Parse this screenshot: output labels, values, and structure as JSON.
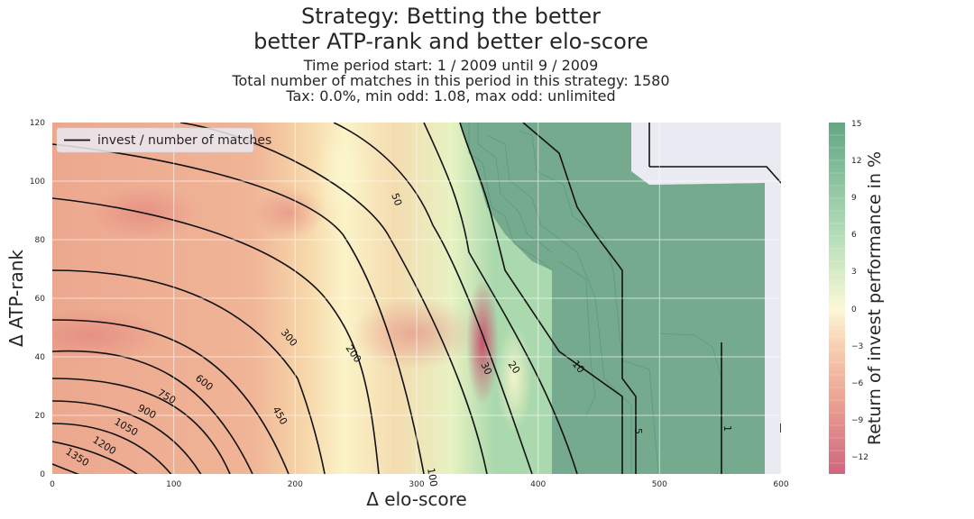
{
  "chart_data": {
    "type": "heatmap",
    "title": "Strategy: Betting the better",
    "subtitle": "better ATP-rank and better elo-score",
    "info_lines": [
      "Time period start: 1 / 2009 until 9 / 2009",
      "Total number of matches in this period in this strategy: 1580",
      "Tax: 0.0%, min odd: 1.08, max odd: unlimited"
    ],
    "xlabel": "Δ elo-score",
    "ylabel": "Δ ATP-rank",
    "xlim": [
      0,
      600
    ],
    "ylim": [
      0,
      120
    ],
    "xticks": [
      "0",
      "100",
      "200",
      "300",
      "400",
      "500",
      "600"
    ],
    "yticks": [
      "0",
      "20",
      "40",
      "60",
      "80",
      "100",
      "120"
    ],
    "colorbar": {
      "label": "Return of invest performance in %",
      "range": [
        -13.5,
        15
      ],
      "ticks": [
        "15",
        "12",
        "9",
        "6",
        "3",
        "0",
        "−3",
        "−6",
        "−9",
        "−12"
      ],
      "colors": [
        "#c2405e",
        "#e88f7a",
        "#f7c59f",
        "#fbf6cc",
        "#9fd5a6",
        "#3d9065"
      ]
    },
    "legend": {
      "label": "invest / number of matches",
      "position": "top-left"
    },
    "grid": true,
    "contour_labels": [
      "1350",
      "1200",
      "1050",
      "900",
      "750",
      "600",
      "450",
      "300",
      "200",
      "100",
      "50",
      "30",
      "20",
      "10",
      "5",
      "1"
    ],
    "contour_levels": [
      1350,
      1200,
      1050,
      900,
      750,
      600,
      450,
      300,
      200,
      100,
      50,
      30,
      20,
      10,
      5,
      1
    ]
  }
}
